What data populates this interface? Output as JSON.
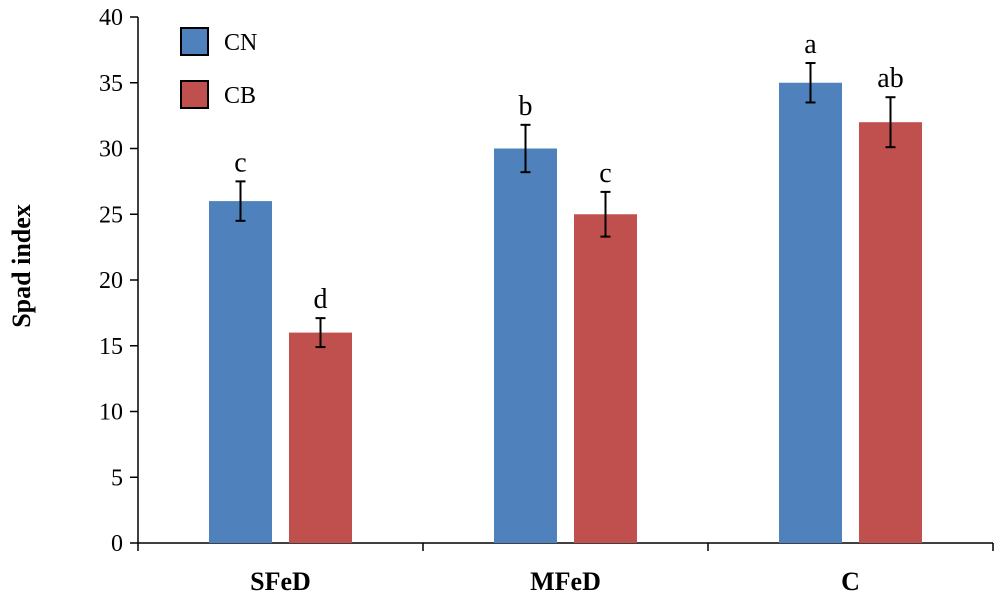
{
  "chart_data": {
    "type": "bar",
    "title": "",
    "xlabel": "",
    "ylabel": "Spad index",
    "ylim": [
      0,
      40
    ],
    "yticks": [
      0,
      5,
      10,
      15,
      20,
      25,
      30,
      35,
      40
    ],
    "categories": [
      "SFeD",
      "MFeD",
      "C"
    ],
    "series": [
      {
        "name": "CN",
        "color": "#4F81BD",
        "values": [
          26,
          30,
          35
        ],
        "errors": [
          1.5,
          1.8,
          1.5
        ],
        "letters": [
          "c",
          "b",
          "a"
        ]
      },
      {
        "name": "CB",
        "color": "#C0504D",
        "values": [
          16,
          25,
          32
        ],
        "errors": [
          1.1,
          1.7,
          1.9
        ],
        "letters": [
          "d",
          "c",
          "ab"
        ]
      }
    ],
    "legend": "top-left",
    "grid": false
  }
}
